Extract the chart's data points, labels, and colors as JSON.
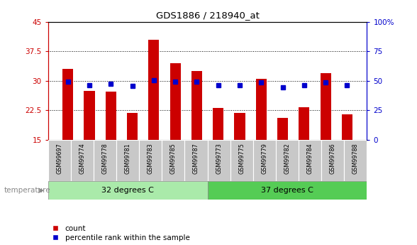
{
  "title": "GDS1886 / 218940_at",
  "samples": [
    "GSM99697",
    "GSM99774",
    "GSM99778",
    "GSM99781",
    "GSM99783",
    "GSM99785",
    "GSM99787",
    "GSM99773",
    "GSM99775",
    "GSM99779",
    "GSM99782",
    "GSM99784",
    "GSM99786",
    "GSM99788"
  ],
  "bar_values": [
    33.0,
    27.5,
    27.2,
    21.8,
    40.5,
    34.5,
    32.5,
    23.0,
    21.8,
    30.5,
    20.5,
    23.2,
    32.0,
    21.5
  ],
  "bar_base": 15,
  "percentile_values": [
    49.5,
    46.5,
    47.5,
    45.5,
    50.5,
    49.5,
    49.5,
    46.0,
    46.0,
    48.5,
    44.5,
    46.5,
    48.5,
    46.0
  ],
  "group1_label": "32 degrees C",
  "group2_label": "37 degrees C",
  "group1_count": 7,
  "group2_count": 7,
  "ylim": [
    15,
    45
  ],
  "ylim2": [
    0,
    100
  ],
  "yticks": [
    15,
    22.5,
    30,
    37.5,
    45
  ],
  "yticks2": [
    0,
    25,
    50,
    75,
    100
  ],
  "ytick_labels": [
    "15",
    "22.5",
    "30",
    "37.5",
    "45"
  ],
  "ytick_labels2": [
    "0",
    "25",
    "50",
    "75",
    "100%"
  ],
  "bar_color": "#CC0000",
  "marker_color": "#0000CC",
  "bg_color": "#FFFFFF",
  "xticklabel_bg": "#C8C8C8",
  "group1_bg": "#AAEAAA",
  "group2_bg": "#55CC55",
  "temperature_label": "temperature",
  "legend_count": "count",
  "legend_percentile": "percentile rank within the sample",
  "left_tick_color": "#CC0000",
  "right_tick_color": "#0000CC"
}
